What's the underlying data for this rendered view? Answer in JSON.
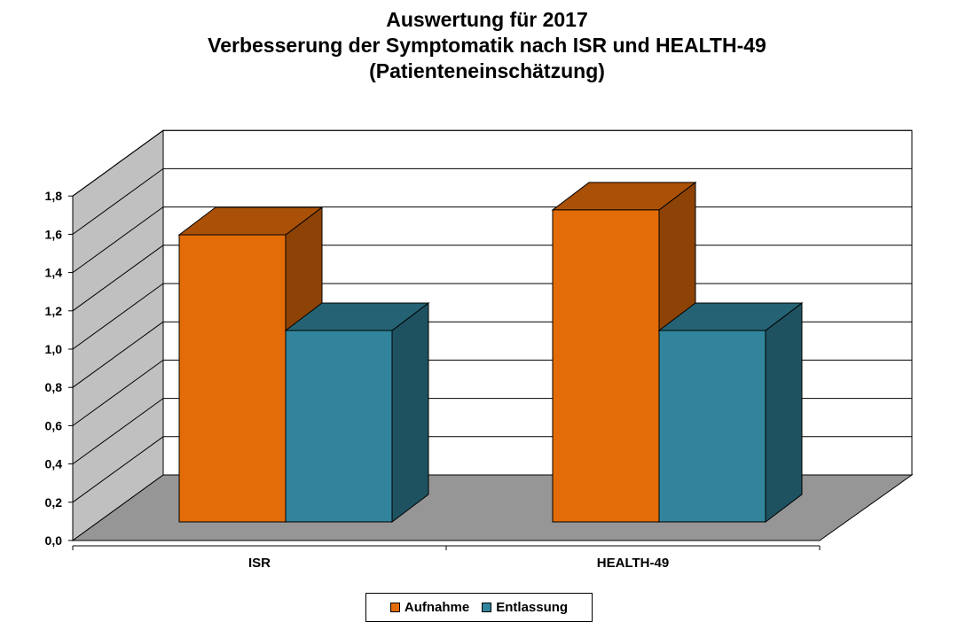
{
  "chart_data": {
    "type": "bar",
    "title": [
      "Auswertung für 2017",
      "Verbesserung der Symptomatik nach ISR und HEALTH-49",
      "(Patienteneinschätzung)"
    ],
    "categories": [
      "ISR",
      "HEALTH-49"
    ],
    "series": [
      {
        "name": "Aufnahme",
        "values": [
          1.5,
          1.63
        ],
        "color": "#E36C09"
      },
      {
        "name": "Entlassung",
        "values": [
          1.0,
          1.0
        ],
        "color": "#31849B"
      }
    ],
    "y_ticks": [
      "0,0",
      "0,2",
      "0,4",
      "0,6",
      "0,8",
      "1,0",
      "1,2",
      "1,4",
      "1,6",
      "1,8"
    ],
    "ylim": [
      0,
      1.8
    ],
    "grid": true,
    "three_d": true,
    "legend_position": "bottom"
  }
}
